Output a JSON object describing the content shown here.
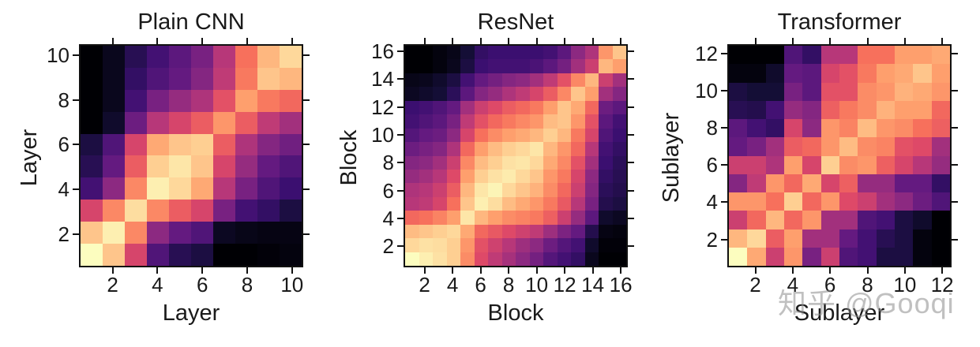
{
  "chart_data": [
    {
      "type": "heatmap",
      "title": "Plain CNN",
      "xlabel": "Layer",
      "ylabel": "Layer",
      "colormap": "magma",
      "n": 10,
      "xticks": [
        2,
        4,
        6,
        8,
        10
      ],
      "yticks": [
        2,
        4,
        6,
        8,
        10
      ],
      "xlim": [
        0.5,
        10.5
      ],
      "ylim": [
        0.5,
        10.5
      ],
      "rows_order": "top row = index 10, bottom row = index 1; columns left→right = 1→n",
      "values": [
        [
          0.0,
          0.05,
          0.15,
          0.22,
          0.28,
          0.35,
          0.5,
          0.7,
          0.85,
          0.92
        ],
        [
          0.0,
          0.05,
          0.18,
          0.25,
          0.3,
          0.38,
          0.52,
          0.72,
          0.88,
          0.85
        ],
        [
          0.0,
          0.05,
          0.22,
          0.35,
          0.42,
          0.48,
          0.62,
          0.8,
          0.72,
          0.68
        ],
        [
          0.0,
          0.08,
          0.32,
          0.5,
          0.58,
          0.65,
          0.78,
          0.65,
          0.52,
          0.45
        ],
        [
          0.12,
          0.25,
          0.58,
          0.82,
          0.88,
          0.9,
          0.65,
          0.48,
          0.38,
          0.33
        ],
        [
          0.15,
          0.3,
          0.65,
          0.9,
          0.95,
          0.88,
          0.58,
          0.42,
          0.3,
          0.25
        ],
        [
          0.22,
          0.4,
          0.75,
          0.97,
          0.92,
          0.82,
          0.5,
          0.35,
          0.25,
          0.2
        ],
        [
          0.58,
          0.75,
          0.93,
          0.75,
          0.65,
          0.58,
          0.35,
          0.22,
          0.18,
          0.12
        ],
        [
          0.88,
          0.97,
          0.75,
          0.4,
          0.3,
          0.25,
          0.06,
          0.04,
          0.03,
          0.03
        ],
        [
          1.0,
          0.88,
          0.58,
          0.25,
          0.15,
          0.12,
          0.0,
          0.0,
          0.01,
          0.02
        ]
      ]
    },
    {
      "type": "heatmap",
      "title": "ResNet",
      "xlabel": "Block",
      "ylabel": "Block",
      "colormap": "magma",
      "n": 16,
      "xticks": [
        2,
        4,
        6,
        8,
        10,
        12,
        14,
        16
      ],
      "yticks": [
        2,
        4,
        6,
        8,
        10,
        12,
        14,
        16
      ],
      "xlim": [
        0.5,
        16.5
      ],
      "ylim": [
        0.5,
        16.5
      ],
      "rows_order": "top row = index 16, bottom row = index 1; columns left→right = 1→n",
      "values": [
        [
          0.0,
          0.0,
          0.02,
          0.04,
          0.1,
          0.18,
          0.2,
          0.2,
          0.2,
          0.2,
          0.22,
          0.28,
          0.4,
          0.48,
          0.78,
          0.88
        ],
        [
          0.0,
          0.0,
          0.02,
          0.05,
          0.12,
          0.2,
          0.22,
          0.22,
          0.22,
          0.24,
          0.28,
          0.34,
          0.45,
          0.55,
          0.85,
          0.8
        ],
        [
          0.04,
          0.05,
          0.08,
          0.12,
          0.22,
          0.3,
          0.34,
          0.38,
          0.4,
          0.45,
          0.52,
          0.62,
          0.75,
          0.85,
          0.55,
          0.45
        ],
        [
          0.06,
          0.08,
          0.1,
          0.16,
          0.28,
          0.38,
          0.42,
          0.48,
          0.52,
          0.58,
          0.65,
          0.75,
          0.88,
          0.8,
          0.45,
          0.38
        ],
        [
          0.2,
          0.22,
          0.25,
          0.3,
          0.45,
          0.55,
          0.6,
          0.65,
          0.68,
          0.72,
          0.8,
          0.88,
          0.82,
          0.68,
          0.32,
          0.28
        ],
        [
          0.22,
          0.25,
          0.28,
          0.35,
          0.52,
          0.62,
          0.68,
          0.72,
          0.75,
          0.78,
          0.86,
          0.88,
          0.78,
          0.62,
          0.28,
          0.22
        ],
        [
          0.26,
          0.3,
          0.32,
          0.4,
          0.58,
          0.7,
          0.76,
          0.8,
          0.82,
          0.85,
          0.9,
          0.85,
          0.72,
          0.58,
          0.25,
          0.2
        ],
        [
          0.32,
          0.35,
          0.38,
          0.48,
          0.68,
          0.8,
          0.86,
          0.9,
          0.92,
          0.95,
          0.85,
          0.78,
          0.68,
          0.5,
          0.22,
          0.18
        ],
        [
          0.38,
          0.4,
          0.45,
          0.55,
          0.75,
          0.86,
          0.9,
          0.94,
          0.95,
          0.92,
          0.82,
          0.75,
          0.62,
          0.45,
          0.2,
          0.16
        ],
        [
          0.42,
          0.45,
          0.5,
          0.6,
          0.8,
          0.9,
          0.94,
          0.96,
          0.92,
          0.88,
          0.78,
          0.72,
          0.58,
          0.4,
          0.18,
          0.15
        ],
        [
          0.48,
          0.5,
          0.55,
          0.65,
          0.85,
          0.95,
          0.98,
          0.92,
          0.88,
          0.84,
          0.76,
          0.68,
          0.55,
          0.38,
          0.16,
          0.14
        ],
        [
          0.5,
          0.52,
          0.58,
          0.7,
          0.88,
          0.97,
          0.93,
          0.86,
          0.82,
          0.78,
          0.72,
          0.64,
          0.5,
          0.35,
          0.14,
          0.12
        ],
        [
          0.68,
          0.7,
          0.74,
          0.8,
          0.95,
          0.85,
          0.8,
          0.76,
          0.74,
          0.72,
          0.66,
          0.55,
          0.42,
          0.28,
          0.08,
          0.06
        ],
        [
          0.86,
          0.88,
          0.9,
          0.92,
          0.82,
          0.68,
          0.64,
          0.6,
          0.56,
          0.52,
          0.44,
          0.36,
          0.3,
          0.14,
          0.03,
          0.02
        ],
        [
          0.92,
          0.94,
          0.93,
          0.9,
          0.78,
          0.62,
          0.56,
          0.5,
          0.44,
          0.4,
          0.32,
          0.26,
          0.22,
          0.08,
          0.01,
          0.01
        ],
        [
          1.0,
          0.97,
          0.94,
          0.9,
          0.76,
          0.6,
          0.52,
          0.46,
          0.4,
          0.34,
          0.26,
          0.22,
          0.18,
          0.05,
          0.0,
          0.0
        ]
      ]
    },
    {
      "type": "heatmap",
      "title": "Transformer",
      "xlabel": "Sublayer",
      "ylabel": "Sublayer",
      "colormap": "magma",
      "n": 12,
      "xticks": [
        2,
        4,
        6,
        8,
        10,
        12
      ],
      "yticks": [
        2,
        4,
        6,
        8,
        10,
        12
      ],
      "xlim": [
        0.5,
        12.5
      ],
      "ylim": [
        0.5,
        12.5
      ],
      "rows_order": "top row = index 12, bottom row = index 1; columns left→right = 1→n",
      "values": [
        [
          0.0,
          0.0,
          0.0,
          0.25,
          0.18,
          0.5,
          0.5,
          0.7,
          0.7,
          0.8,
          0.8,
          0.82
        ],
        [
          0.02,
          0.02,
          0.08,
          0.3,
          0.28,
          0.58,
          0.62,
          0.72,
          0.8,
          0.82,
          0.88,
          0.8
        ],
        [
          0.12,
          0.1,
          0.1,
          0.35,
          0.28,
          0.62,
          0.62,
          0.76,
          0.78,
          0.84,
          0.82,
          0.78
        ],
        [
          0.15,
          0.14,
          0.22,
          0.42,
          0.38,
          0.66,
          0.72,
          0.76,
          0.84,
          0.8,
          0.8,
          0.68
        ],
        [
          0.28,
          0.22,
          0.18,
          0.58,
          0.4,
          0.78,
          0.74,
          0.86,
          0.78,
          0.76,
          0.7,
          0.66
        ],
        [
          0.3,
          0.35,
          0.45,
          0.65,
          0.68,
          0.78,
          0.86,
          0.76,
          0.74,
          0.62,
          0.6,
          0.45
        ],
        [
          0.55,
          0.55,
          0.48,
          0.8,
          0.58,
          0.9,
          0.76,
          0.78,
          0.66,
          0.58,
          0.5,
          0.42
        ],
        [
          0.38,
          0.52,
          0.78,
          0.68,
          0.82,
          0.58,
          0.66,
          0.42,
          0.42,
          0.3,
          0.3,
          0.18
        ],
        [
          0.78,
          0.78,
          0.7,
          0.9,
          0.68,
          0.78,
          0.6,
          0.55,
          0.45,
          0.4,
          0.32,
          0.25
        ],
        [
          0.55,
          0.68,
          0.85,
          0.68,
          0.78,
          0.45,
          0.45,
          0.25,
          0.22,
          0.12,
          0.08,
          0.0
        ],
        [
          0.85,
          0.92,
          0.65,
          0.8,
          0.45,
          0.45,
          0.3,
          0.22,
          0.15,
          0.12,
          0.02,
          0.0
        ],
        [
          1.0,
          0.82,
          0.55,
          0.78,
          0.35,
          0.55,
          0.25,
          0.22,
          0.12,
          0.12,
          0.02,
          0.0
        ]
      ]
    }
  ],
  "panels": [
    {
      "title": "Plain CNN",
      "xlabel": "Layer",
      "ylabel": "Layer"
    },
    {
      "title": "ResNet",
      "xlabel": "Block",
      "ylabel": "Block"
    },
    {
      "title": "Transformer",
      "xlabel": "Sublayer",
      "ylabel": "Sublayer"
    }
  ],
  "watermark": "知乎 @Gooqi"
}
